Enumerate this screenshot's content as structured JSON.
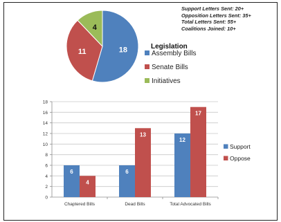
{
  "stats": [
    "Support Letters Sent: 20+",
    "Opposition Letters Sent: 35+",
    "Total Letters Sent: 55+",
    "Coalitions Joined: 10+"
  ],
  "colors": {
    "blue": "#4f81bd",
    "red": "#c0504d",
    "green": "#9bbb59",
    "grid": "#c9c9c9",
    "axis": "#8c8c8c"
  },
  "chart_data": [
    {
      "type": "pie",
      "title": "",
      "legend_title": "Legislation",
      "legend_position": "right",
      "categories": [
        "Assembly Bills",
        "Senate Bills",
        "Initiatives"
      ],
      "values": [
        18,
        11,
        4
      ]
    },
    {
      "type": "bar",
      "title": "",
      "xlabel": "",
      "ylabel": "",
      "categories": [
        "Chaptered Bills",
        "Dead Bills",
        "Total Advocated Bills"
      ],
      "series": [
        {
          "name": "Support",
          "values": [
            6,
            6,
            12
          ]
        },
        {
          "name": "Oppose",
          "values": [
            4,
            13,
            17
          ]
        }
      ],
      "ylim": [
        0,
        18
      ],
      "yticks": [
        "0",
        "2",
        "4",
        "6",
        "8",
        "10",
        "12",
        "14",
        "16",
        "18"
      ],
      "grid": true,
      "legend_position": "right"
    }
  ]
}
